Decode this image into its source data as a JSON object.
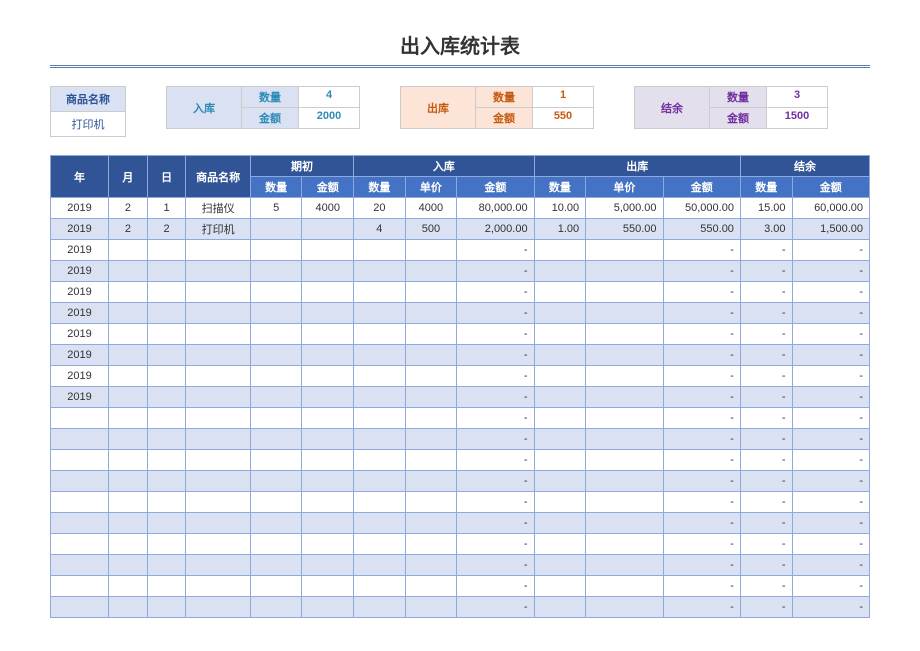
{
  "title": "出入库统计表",
  "summary": {
    "product": {
      "label": "商品名称",
      "value": "打印机"
    },
    "in": {
      "label": "入库",
      "qty_label": "数量",
      "qty": "4",
      "amt_label": "金额",
      "amt": "2000"
    },
    "out": {
      "label": "出库",
      "qty_label": "数量",
      "qty": "1",
      "amt_label": "金额",
      "amt": "550"
    },
    "bal": {
      "label": "结余",
      "qty_label": "数量",
      "qty": "3",
      "amt_label": "金额",
      "amt": "1500"
    }
  },
  "headers": {
    "year": "年",
    "month": "月",
    "day": "日",
    "product": "商品名称",
    "opening": "期初",
    "in": "入库",
    "out": "出库",
    "bal": "结余",
    "qty": "数量",
    "amt": "金额",
    "price": "单价"
  },
  "rows": [
    {
      "y": "2019",
      "m": "2",
      "d": "1",
      "n": "扫描仪",
      "oq": "5",
      "oa": "4000",
      "iq": "20",
      "ip": "4000",
      "ia": "80,000.00",
      "xq": "10.00",
      "xp": "5,000.00",
      "xa": "50,000.00",
      "bq": "15.00",
      "ba": "60,000.00"
    },
    {
      "y": "2019",
      "m": "2",
      "d": "2",
      "n": "打印机",
      "oq": "",
      "oa": "",
      "iq": "4",
      "ip": "500",
      "ia": "2,000.00",
      "xq": "1.00",
      "xp": "550.00",
      "xa": "550.00",
      "bq": "3.00",
      "ba": "1,500.00"
    },
    {
      "y": "2019",
      "m": "",
      "d": "",
      "n": "",
      "oq": "",
      "oa": "",
      "iq": "",
      "ip": "",
      "ia": "-",
      "xq": "",
      "xp": "",
      "xa": "-",
      "bq": "-",
      "ba": "-"
    },
    {
      "y": "2019",
      "m": "",
      "d": "",
      "n": "",
      "oq": "",
      "oa": "",
      "iq": "",
      "ip": "",
      "ia": "-",
      "xq": "",
      "xp": "",
      "xa": "-",
      "bq": "-",
      "ba": "-"
    },
    {
      "y": "2019",
      "m": "",
      "d": "",
      "n": "",
      "oq": "",
      "oa": "",
      "iq": "",
      "ip": "",
      "ia": "-",
      "xq": "",
      "xp": "",
      "xa": "-",
      "bq": "-",
      "ba": "-"
    },
    {
      "y": "2019",
      "m": "",
      "d": "",
      "n": "",
      "oq": "",
      "oa": "",
      "iq": "",
      "ip": "",
      "ia": "-",
      "xq": "",
      "xp": "",
      "xa": "-",
      "bq": "-",
      "ba": "-"
    },
    {
      "y": "2019",
      "m": "",
      "d": "",
      "n": "",
      "oq": "",
      "oa": "",
      "iq": "",
      "ip": "",
      "ia": "-",
      "xq": "",
      "xp": "",
      "xa": "-",
      "bq": "-",
      "ba": "-"
    },
    {
      "y": "2019",
      "m": "",
      "d": "",
      "n": "",
      "oq": "",
      "oa": "",
      "iq": "",
      "ip": "",
      "ia": "-",
      "xq": "",
      "xp": "",
      "xa": "-",
      "bq": "-",
      "ba": "-"
    },
    {
      "y": "2019",
      "m": "",
      "d": "",
      "n": "",
      "oq": "",
      "oa": "",
      "iq": "",
      "ip": "",
      "ia": "-",
      "xq": "",
      "xp": "",
      "xa": "-",
      "bq": "-",
      "ba": "-"
    },
    {
      "y": "2019",
      "m": "",
      "d": "",
      "n": "",
      "oq": "",
      "oa": "",
      "iq": "",
      "ip": "",
      "ia": "-",
      "xq": "",
      "xp": "",
      "xa": "-",
      "bq": "-",
      "ba": "-"
    },
    {
      "y": "",
      "m": "",
      "d": "",
      "n": "",
      "oq": "",
      "oa": "",
      "iq": "",
      "ip": "",
      "ia": "-",
      "xq": "",
      "xp": "",
      "xa": "-",
      "bq": "-",
      "ba": "-"
    },
    {
      "y": "",
      "m": "",
      "d": "",
      "n": "",
      "oq": "",
      "oa": "",
      "iq": "",
      "ip": "",
      "ia": "-",
      "xq": "",
      "xp": "",
      "xa": "-",
      "bq": "-",
      "ba": "-"
    },
    {
      "y": "",
      "m": "",
      "d": "",
      "n": "",
      "oq": "",
      "oa": "",
      "iq": "",
      "ip": "",
      "ia": "-",
      "xq": "",
      "xp": "",
      "xa": "-",
      "bq": "-",
      "ba": "-"
    },
    {
      "y": "",
      "m": "",
      "d": "",
      "n": "",
      "oq": "",
      "oa": "",
      "iq": "",
      "ip": "",
      "ia": "-",
      "xq": "",
      "xp": "",
      "xa": "-",
      "bq": "-",
      "ba": "-"
    },
    {
      "y": "",
      "m": "",
      "d": "",
      "n": "",
      "oq": "",
      "oa": "",
      "iq": "",
      "ip": "",
      "ia": "-",
      "xq": "",
      "xp": "",
      "xa": "-",
      "bq": "-",
      "ba": "-"
    },
    {
      "y": "",
      "m": "",
      "d": "",
      "n": "",
      "oq": "",
      "oa": "",
      "iq": "",
      "ip": "",
      "ia": "-",
      "xq": "",
      "xp": "",
      "xa": "-",
      "bq": "-",
      "ba": "-"
    },
    {
      "y": "",
      "m": "",
      "d": "",
      "n": "",
      "oq": "",
      "oa": "",
      "iq": "",
      "ip": "",
      "ia": "-",
      "xq": "",
      "xp": "",
      "xa": "-",
      "bq": "-",
      "ba": "-"
    },
    {
      "y": "",
      "m": "",
      "d": "",
      "n": "",
      "oq": "",
      "oa": "",
      "iq": "",
      "ip": "",
      "ia": "-",
      "xq": "",
      "xp": "",
      "xa": "-",
      "bq": "-",
      "ba": "-"
    },
    {
      "y": "",
      "m": "",
      "d": "",
      "n": "",
      "oq": "",
      "oa": "",
      "iq": "",
      "ip": "",
      "ia": "-",
      "xq": "",
      "xp": "",
      "xa": "-",
      "bq": "-",
      "ba": "-"
    },
    {
      "y": "",
      "m": "",
      "d": "",
      "n": "",
      "oq": "",
      "oa": "",
      "iq": "",
      "ip": "",
      "ia": "-",
      "xq": "",
      "xp": "",
      "xa": "-",
      "bq": "-",
      "ba": "-"
    }
  ]
}
